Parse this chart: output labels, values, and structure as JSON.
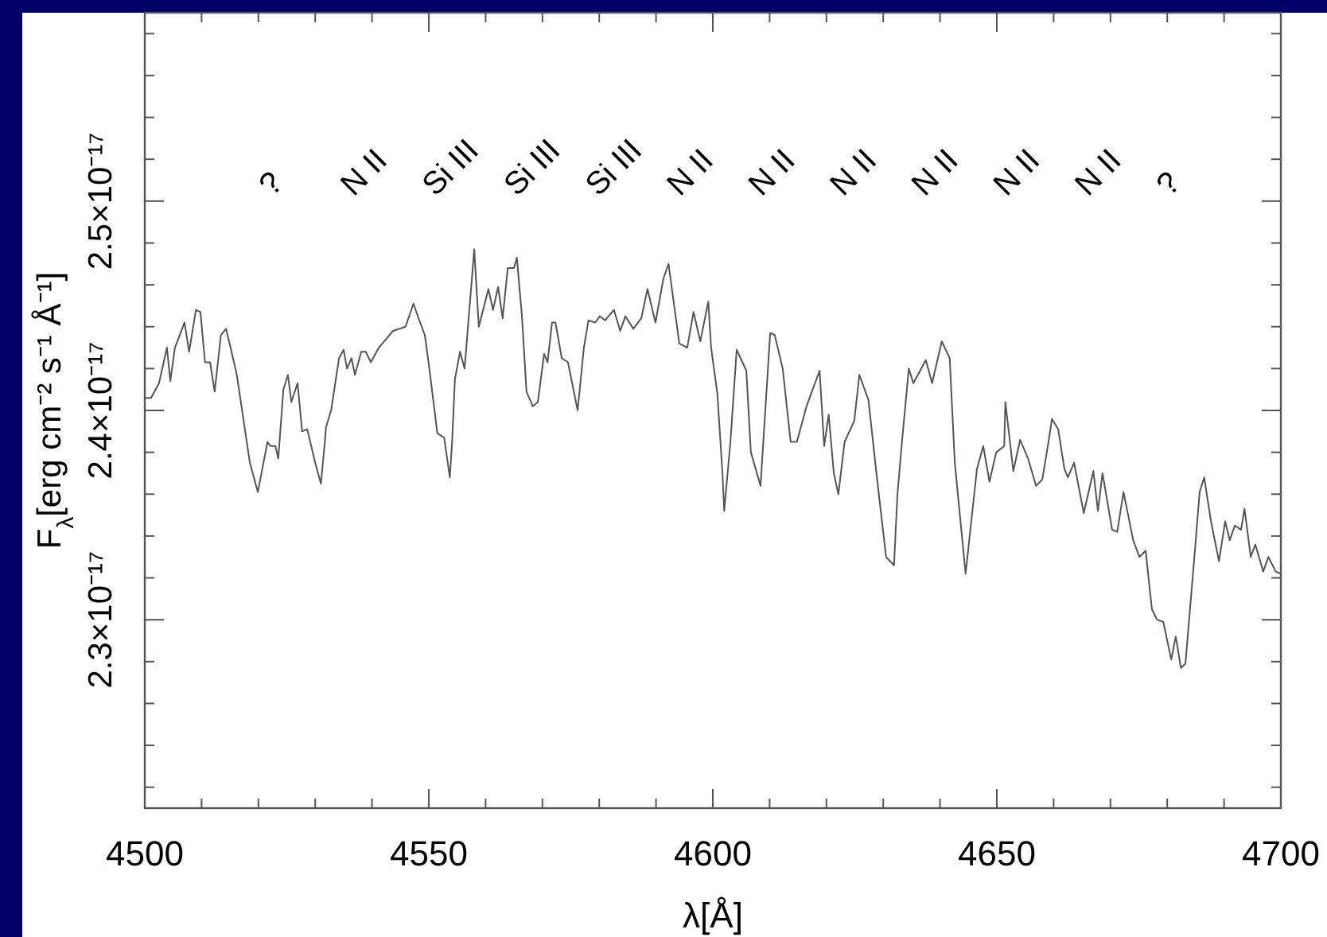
{
  "chart_data": {
    "type": "line",
    "xlabel": "λ[Å]",
    "ylabel": "F$_{λ}$[erg cm⁻² s⁻¹ Å⁻¹]",
    "xlim": [
      4500,
      4700
    ],
    "xticks": [
      4500,
      {
        "value": 4510,
        "label": null
      },
      {
        "value": 4520,
        "label": null
      },
      {
        "value": 4530,
        "label": null
      },
      {
        "value": 4540,
        "label": null
      },
      4550,
      {
        "value": 4560,
        "label": null
      },
      {
        "value": 4570,
        "label": null
      },
      {
        "value": 4580,
        "label": null
      },
      {
        "value": 4590,
        "label": null
      },
      4600,
      {
        "value": 4610,
        "label": null
      },
      {
        "value": 4620,
        "label": null
      },
      {
        "value": 4630,
        "label": null
      },
      {
        "value": 4640,
        "label": null
      },
      4650,
      {
        "value": 4660,
        "label": null
      },
      {
        "value": 4670,
        "label": null
      },
      {
        "value": 4680,
        "label": null
      },
      {
        "value": 4690,
        "label": null
      },
      4700
    ],
    "ylim": [
      2.21e-17,
      2.59e-17
    ],
    "yticks": [
      {
        "value": 2.22e-17,
        "label": null
      },
      {
        "value": 2.24e-17,
        "label": null
      },
      {
        "value": 2.26e-17,
        "label": null
      },
      {
        "value": 2.28e-17,
        "label": null
      },
      {
        "value": 2.3e-17,
        "label": "2.3×10⁻¹⁷"
      },
      {
        "value": 2.32e-17,
        "label": null
      },
      {
        "value": 2.34e-17,
        "label": null
      },
      {
        "value": 2.36e-17,
        "label": null
      },
      {
        "value": 2.38e-17,
        "label": null
      },
      {
        "value": 2.4e-17,
        "label": "2.4×10⁻¹⁷"
      },
      {
        "value": 2.42e-17,
        "label": null
      },
      {
        "value": 2.44e-17,
        "label": null
      },
      {
        "value": 2.46e-17,
        "label": null
      },
      {
        "value": 2.48e-17,
        "label": null
      },
      {
        "value": 2.5e-17,
        "label": "2.5×10⁻¹⁷"
      },
      {
        "value": 2.52e-17,
        "label": null
      },
      {
        "value": 2.54e-17,
        "label": null
      },
      {
        "value": 2.56e-17,
        "label": null
      },
      {
        "value": 2.58e-17,
        "label": null
      }
    ],
    "grid": false,
    "marker": "none",
    "line_style": "solid",
    "annotations": [
      "?",
      "N II",
      "Si III",
      "Si III",
      "Si III",
      "N II",
      "N II",
      "N II",
      "N II",
      "N II",
      "N II",
      "?"
    ],
    "series": [
      {
        "color": "#555555",
        "x": [
          4500,
          4501.1,
          4502.5,
          4503.9,
          4504.5,
          4505.3,
          4507,
          4507.8,
          4509,
          4509.8,
          4510.6,
          4511.5,
          4512.3,
          4513.4,
          4514.3,
          4515.1,
          4516.2,
          4518.5,
          4519.9,
          4521.6,
          4522.1,
          4523,
          4523.5,
          4524.4,
          4525.2,
          4525.8,
          4526.9,
          4527.7,
          4528.6,
          4530,
          4531,
          4531.7,
          4531.9,
          4532.8,
          4534.2,
          4535,
          4535.6,
          4536.4,
          4537,
          4538.1,
          4538.9,
          4539.8,
          4541.2,
          4543.7,
          4545.9,
          4547.3,
          4548.2,
          4549.3,
          4550.1,
          4551.5,
          4552.7,
          4553.7,
          4554.1,
          4554.6,
          4555.5,
          4556.3,
          4558,
          4558.8,
          4560.5,
          4561.3,
          4562.2,
          4563,
          4563.9,
          4565,
          4565.5,
          4566.4,
          4567.2,
          4568.3,
          4569.2,
          4570.3,
          4570.9,
          4571.7,
          4572.3,
          4573.4,
          4574.5,
          4576.2,
          4577.3,
          4578.1,
          4579.3,
          4580.1,
          4581,
          4582.6,
          4583.7,
          4584.6,
          4586,
          4587.4,
          4588.5,
          4589.9,
          4591.3,
          4592.2,
          4594.1,
          4595.5,
          4596.6,
          4597.8,
          4599.2,
          4599.7,
          4600.8,
          4601.7,
          4602,
          4603.1,
          4604.2,
          4605.9,
          4606.7,
          4608.4,
          4610.1,
          4610.9,
          4612.3,
          4613.7,
          4614.8,
          4616.5,
          4618.8,
          4619.6,
          4620.4,
          4621.3,
          4622.1,
          4623.2,
          4624.9,
          4625.8,
          4627.4,
          4628.8,
          4630.5,
          4631.9,
          4632.5,
          4633.3,
          4634.5,
          4635.3,
          4637.5,
          4638.6,
          4640.3,
          4641.7,
          4642.6,
          4644.5,
          4646.5,
          4647.6,
          4648.7,
          4649.9,
          4651.3,
          4651.5,
          4652.9,
          4654.1,
          4655.5,
          4656.9,
          4658,
          4659.1,
          4659.7,
          4660.8,
          4661.9,
          4662.5,
          4663.6,
          4665.3,
          4667,
          4667.8,
          4668.6,
          4670.3,
          4671.2,
          4672.3,
          4674,
          4675.1,
          4676.2,
          4677.3,
          4678.2,
          4679.3,
          4680.7,
          4681.5,
          4682.4,
          4683.2,
          4684.9,
          4685.7,
          4686.5,
          4687.7,
          4689.1,
          4690.2,
          4691,
          4691.9,
          4693,
          4693.6,
          4694.7,
          4695.5,
          4696.9,
          4697.8,
          4699.1,
          4700
        ],
        "values": [
          2.406e-17,
          2.406e-17,
          2.413e-17,
          2.43e-17,
          2.414e-17,
          2.43e-17,
          2.442e-17,
          2.428e-17,
          2.448e-17,
          2.447e-17,
          2.423e-17,
          2.423e-17,
          2.409e-17,
          2.436e-17,
          2.439e-17,
          2.43e-17,
          2.417e-17,
          2.375e-17,
          2.361e-17,
          2.385e-17,
          2.383e-17,
          2.383e-17,
          2.377e-17,
          2.41e-17,
          2.417e-17,
          2.404e-17,
          2.413e-17,
          2.39e-17,
          2.391e-17,
          2.375e-17,
          2.365e-17,
          2.385e-17,
          2.392e-17,
          2.4e-17,
          2.425e-17,
          2.429e-17,
          2.42e-17,
          2.425e-17,
          2.417e-17,
          2.428e-17,
          2.428e-17,
          2.423e-17,
          2.43e-17,
          2.438e-17,
          2.44e-17,
          2.451e-17,
          2.444e-17,
          2.436e-17,
          2.42e-17,
          2.389e-17,
          2.387e-17,
          2.368e-17,
          2.385e-17,
          2.415e-17,
          2.428e-17,
          2.42e-17,
          2.477e-17,
          2.44e-17,
          2.458e-17,
          2.448e-17,
          2.459e-17,
          2.444e-17,
          2.468e-17,
          2.468e-17,
          2.473e-17,
          2.445e-17,
          2.409e-17,
          2.402e-17,
          2.404e-17,
          2.427e-17,
          2.423e-17,
          2.442e-17,
          2.442e-17,
          2.425e-17,
          2.423e-17,
          2.4e-17,
          2.43e-17,
          2.443e-17,
          2.442e-17,
          2.445e-17,
          2.443e-17,
          2.448e-17,
          2.438e-17,
          2.445e-17,
          2.439e-17,
          2.444e-17,
          2.458e-17,
          2.442e-17,
          2.463e-17,
          2.47e-17,
          2.432e-17,
          2.43e-17,
          2.447e-17,
          2.433e-17,
          2.452e-17,
          2.43e-17,
          2.408e-17,
          2.37e-17,
          2.352e-17,
          2.385e-17,
          2.429e-17,
          2.419e-17,
          2.38e-17,
          2.364e-17,
          2.437e-17,
          2.436e-17,
          2.42e-17,
          2.385e-17,
          2.385e-17,
          2.402e-17,
          2.419e-17,
          2.383e-17,
          2.398e-17,
          2.37e-17,
          2.36e-17,
          2.385e-17,
          2.395e-17,
          2.417e-17,
          2.405e-17,
          2.37e-17,
          2.33e-17,
          2.326e-17,
          2.36e-17,
          2.385e-17,
          2.42e-17,
          2.413e-17,
          2.424e-17,
          2.413e-17,
          2.433e-17,
          2.425e-17,
          2.375e-17,
          2.322e-17,
          2.372e-17,
          2.383e-17,
          2.366e-17,
          2.38e-17,
          2.383e-17,
          2.404e-17,
          2.371e-17,
          2.386e-17,
          2.377e-17,
          2.364e-17,
          2.367e-17,
          2.385e-17,
          2.396e-17,
          2.391e-17,
          2.372e-17,
          2.368e-17,
          2.375e-17,
          2.351e-17,
          2.371e-17,
          2.352e-17,
          2.37e-17,
          2.343e-17,
          2.342e-17,
          2.361e-17,
          2.338e-17,
          2.33e-17,
          2.333e-17,
          2.305e-17,
          2.3e-17,
          2.299e-17,
          2.281e-17,
          2.292e-17,
          2.277e-17,
          2.279e-17,
          2.334e-17,
          2.361e-17,
          2.368e-17,
          2.347e-17,
          2.328e-17,
          2.347e-17,
          2.338e-17,
          2.345e-17,
          2.343e-17,
          2.353e-17,
          2.33e-17,
          2.336e-17,
          2.323e-17,
          2.33e-17,
          2.323e-17,
          2.322e-17
        ]
      }
    ]
  }
}
